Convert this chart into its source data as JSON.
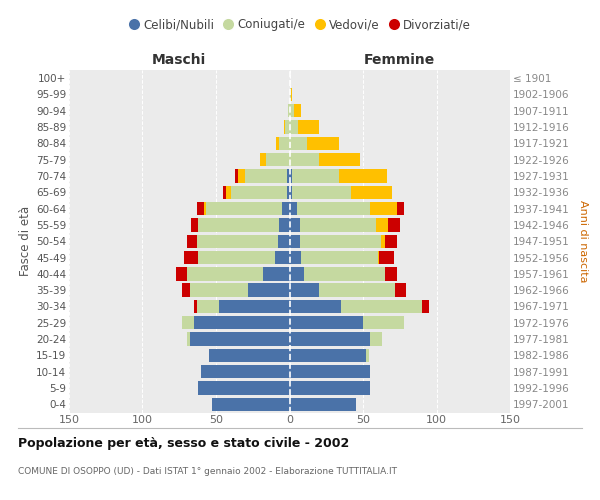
{
  "age_groups": [
    "0-4",
    "5-9",
    "10-14",
    "15-19",
    "20-24",
    "25-29",
    "30-34",
    "35-39",
    "40-44",
    "45-49",
    "50-54",
    "55-59",
    "60-64",
    "65-69",
    "70-74",
    "75-79",
    "80-84",
    "85-89",
    "90-94",
    "95-99",
    "100+"
  ],
  "birth_years": [
    "1997-2001",
    "1992-1996",
    "1987-1991",
    "1982-1986",
    "1977-1981",
    "1972-1976",
    "1967-1971",
    "1962-1966",
    "1957-1961",
    "1952-1956",
    "1947-1951",
    "1942-1946",
    "1937-1941",
    "1932-1936",
    "1927-1931",
    "1922-1926",
    "1917-1921",
    "1912-1916",
    "1907-1911",
    "1902-1906",
    "≤ 1901"
  ],
  "males_celibi": [
    53,
    62,
    60,
    55,
    68,
    65,
    48,
    28,
    18,
    10,
    8,
    7,
    5,
    2,
    2,
    0,
    0,
    0,
    0,
    0,
    0
  ],
  "males_coniugati": [
    0,
    0,
    0,
    0,
    2,
    8,
    15,
    40,
    52,
    52,
    55,
    55,
    52,
    38,
    28,
    16,
    7,
    3,
    1,
    0,
    0
  ],
  "males_vedovi": [
    0,
    0,
    0,
    0,
    0,
    0,
    0,
    0,
    0,
    0,
    0,
    0,
    1,
    3,
    5,
    4,
    2,
    1,
    0,
    0,
    0
  ],
  "males_divorziati": [
    0,
    0,
    0,
    0,
    0,
    0,
    2,
    5,
    7,
    10,
    7,
    5,
    5,
    2,
    2,
    0,
    0,
    0,
    0,
    0,
    0
  ],
  "females_nubili": [
    45,
    55,
    55,
    52,
    55,
    50,
    35,
    20,
    10,
    8,
    7,
    7,
    5,
    2,
    2,
    0,
    0,
    0,
    0,
    0,
    0
  ],
  "females_coniugate": [
    0,
    0,
    0,
    2,
    8,
    28,
    55,
    52,
    55,
    52,
    55,
    52,
    50,
    40,
    32,
    20,
    12,
    6,
    3,
    1,
    0
  ],
  "females_vedove": [
    0,
    0,
    0,
    0,
    0,
    0,
    0,
    0,
    0,
    1,
    3,
    8,
    18,
    28,
    32,
    28,
    22,
    14,
    5,
    1,
    0
  ],
  "females_divorziate": [
    0,
    0,
    0,
    0,
    0,
    0,
    5,
    7,
    8,
    10,
    8,
    8,
    5,
    0,
    0,
    0,
    0,
    0,
    0,
    0,
    0
  ],
  "color_celibi": "#4a72a8",
  "color_coniugati": "#c5d9a0",
  "color_vedovi": "#ffc000",
  "color_divorziati": "#cc0000",
  "xlim": 150,
  "title": "Popolazione per età, sesso e stato civile - 2002",
  "subtitle": "COMUNE DI OSOPPO (UD) - Dati ISTAT 1° gennaio 2002 - Elaborazione TUTTITALIA.IT",
  "ylabel_left": "Fasce di età",
  "ylabel_right": "Anni di nascita",
  "label_maschi": "Maschi",
  "label_femmine": "Femmine",
  "legend_labels": [
    "Celibi/Nubili",
    "Coniugati/e",
    "Vedovi/e",
    "Divorziati/e"
  ],
  "bg_color": "#ffffff",
  "plot_bg": "#ebebeb",
  "grid_color": "#cccccc"
}
